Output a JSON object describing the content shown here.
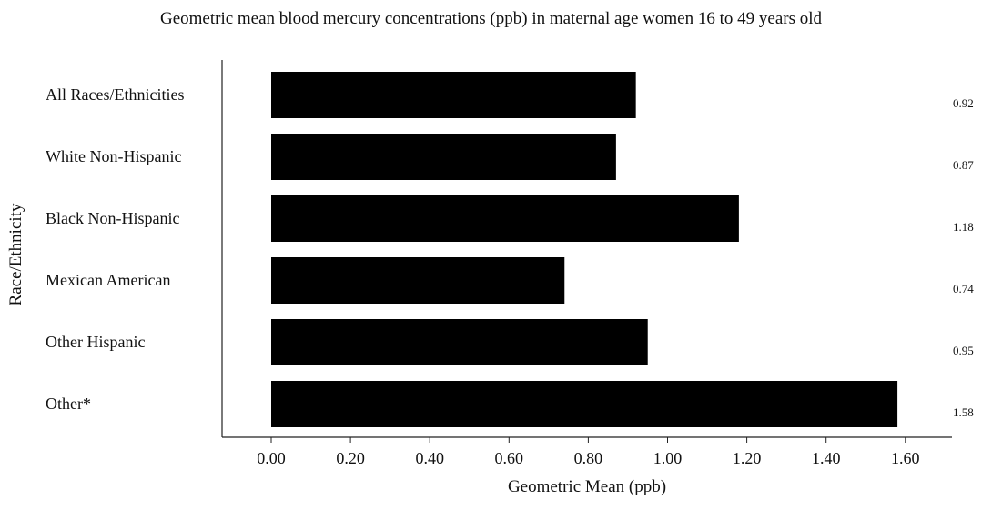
{
  "chart_data": {
    "type": "bar",
    "orientation": "horizontal",
    "title": "Geometric mean blood mercury concentrations (ppb) in maternal age women 16 to 49 years old",
    "xlabel": "Geometric Mean (ppb)",
    "ylabel": "Race/Ethnicity",
    "categories": [
      "All Races/Ethnicities",
      "White Non-Hispanic",
      "Black Non-Hispanic",
      "Mexican American",
      "Other Hispanic",
      "Other*"
    ],
    "values": [
      0.92,
      0.87,
      1.18,
      0.74,
      0.95,
      1.58
    ],
    "value_labels": [
      "0.92",
      "0.87",
      "1.18",
      "0.74",
      "0.95",
      "1.58"
    ],
    "xlim": [
      0,
      1.6
    ],
    "xticks": [
      "0.00",
      "0.20",
      "0.40",
      "0.60",
      "0.80",
      "1.00",
      "1.20",
      "1.40",
      "1.60"
    ],
    "bar_color": "#000000",
    "grid": false,
    "legend": "none"
  }
}
